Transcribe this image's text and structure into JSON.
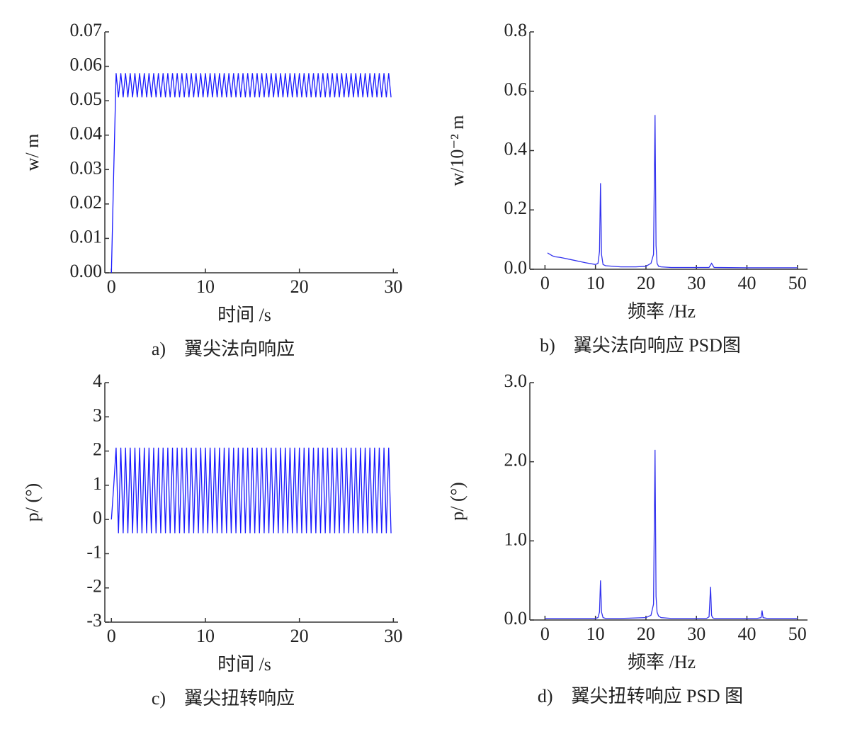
{
  "chart_data": [
    {
      "type": "line",
      "caption": "a)　翼尖法向响应",
      "xlabel": "时间 /s",
      "ylabel": "w/ m",
      "color": "#1a1aff",
      "xlim": [
        -0.7,
        30.5
      ],
      "ylim": [
        0,
        0.07
      ],
      "xticks": [
        0,
        10,
        20,
        30
      ],
      "yticks": [
        {
          "value": 0,
          "label": "0.00"
        },
        0.01,
        0.02,
        0.03,
        0.04,
        0.05,
        0.06,
        0.07
      ],
      "x": [
        0,
        0.25,
        0.5,
        0.75,
        1,
        1.25,
        1.5,
        1.75,
        2,
        2.25,
        2.5,
        2.75,
        3,
        3.25,
        3.5,
        3.75,
        4,
        4.25,
        4.5,
        4.75,
        5,
        5.25,
        5.5,
        5.75,
        6,
        6.25,
        6.5,
        6.75,
        7,
        7.25,
        7.5,
        7.75,
        8,
        8.25,
        8.5,
        8.75,
        9,
        9.25,
        9.5,
        9.75,
        10,
        10.25,
        10.5,
        10.75,
        11,
        11.25,
        11.5,
        11.75,
        12,
        12.25,
        12.5,
        12.75,
        13,
        13.25,
        13.5,
        13.75,
        14,
        14.25,
        14.5,
        14.75,
        15,
        15.25,
        15.5,
        15.75,
        16,
        16.25,
        16.5,
        16.75,
        17,
        17.25,
        17.5,
        17.75,
        18,
        18.25,
        18.5,
        18.75,
        19,
        19.25,
        19.5,
        19.75,
        20,
        20.25,
        20.5,
        20.75,
        21,
        21.25,
        21.5,
        21.75,
        22,
        22.25,
        22.5,
        22.75,
        23,
        23.25,
        23.5,
        23.75,
        24,
        24.25,
        24.5,
        24.75,
        25,
        25.25,
        25.5,
        25.75,
        26,
        26.25,
        26.5,
        26.75,
        27,
        27.25,
        27.5,
        27.75,
        28,
        28.25,
        28.5,
        28.75,
        29,
        29.25,
        29.5,
        29.75
      ],
      "values": [
        0,
        0.03,
        0.058,
        0.051,
        0.058,
        0.051,
        0.058,
        0.051,
        0.058,
        0.051,
        0.058,
        0.051,
        0.058,
        0.051,
        0.058,
        0.051,
        0.058,
        0.051,
        0.058,
        0.051,
        0.058,
        0.051,
        0.058,
        0.051,
        0.058,
        0.051,
        0.058,
        0.051,
        0.058,
        0.051,
        0.058,
        0.051,
        0.058,
        0.051,
        0.058,
        0.051,
        0.058,
        0.051,
        0.058,
        0.051,
        0.058,
        0.051,
        0.058,
        0.051,
        0.058,
        0.051,
        0.058,
        0.051,
        0.058,
        0.051,
        0.058,
        0.051,
        0.058,
        0.051,
        0.058,
        0.051,
        0.058,
        0.051,
        0.058,
        0.051,
        0.058,
        0.051,
        0.058,
        0.051,
        0.058,
        0.051,
        0.058,
        0.051,
        0.058,
        0.051,
        0.058,
        0.051,
        0.058,
        0.051,
        0.058,
        0.051,
        0.058,
        0.051,
        0.058,
        0.051,
        0.058,
        0.051,
        0.058,
        0.051,
        0.058,
        0.051,
        0.058,
        0.051,
        0.058,
        0.051,
        0.058,
        0.051,
        0.058,
        0.051,
        0.058,
        0.051,
        0.058,
        0.051,
        0.058,
        0.051,
        0.058,
        0.051,
        0.058,
        0.051,
        0.058,
        0.051,
        0.058,
        0.051,
        0.058,
        0.051,
        0.058,
        0.051,
        0.058,
        0.051,
        0.058,
        0.051,
        0.058,
        0.051,
        0.058,
        0.051
      ]
    },
    {
      "type": "line",
      "caption": "b)　翼尖法向响应 PSD图",
      "xlabel": "频率 /Hz",
      "ylabel": "w/10⁻² m",
      "color": "#3333ee",
      "xlim": [
        -3,
        52
      ],
      "ylim": [
        0,
        0.8
      ],
      "xticks": [
        0,
        10,
        20,
        30,
        40,
        50
      ],
      "yticks": [
        {
          "value": 0,
          "label": "0.0"
        },
        0.2,
        0.4,
        0.6,
        0.8
      ],
      "x": [
        0.5,
        1,
        1.5,
        2,
        3,
        5,
        8,
        10,
        10.5,
        10.8,
        11,
        11.2,
        11.5,
        12,
        15,
        18,
        20,
        21,
        21.5,
        21.8,
        22,
        22.2,
        22.5,
        23,
        25,
        30,
        32.5,
        33,
        33.5,
        40,
        45,
        50
      ],
      "values": [
        0.055,
        0.05,
        0.045,
        0.042,
        0.04,
        0.033,
        0.022,
        0.016,
        0.02,
        0.06,
        0.29,
        0.05,
        0.016,
        0.012,
        0.008,
        0.008,
        0.01,
        0.02,
        0.05,
        0.52,
        0.08,
        0.02,
        0.01,
        0.008,
        0.006,
        0.006,
        0.006,
        0.02,
        0.006,
        0.005,
        0.005,
        0.005
      ]
    },
    {
      "type": "line",
      "caption": "c)　翼尖扭转响应",
      "xlabel": "时间 /s",
      "ylabel": "p/ (°)",
      "color": "#1a1aff",
      "xlim": [
        -0.7,
        30.5
      ],
      "ylim": [
        -3,
        4
      ],
      "xticks": [
        0,
        10,
        20,
        30
      ],
      "yticks": [
        -3,
        -2,
        -1,
        0,
        1,
        2,
        3,
        4
      ],
      "x": [
        0,
        0.25,
        0.5,
        0.75,
        1,
        1.25,
        1.5,
        1.75,
        2,
        2.25,
        2.5,
        2.75,
        3,
        3.25,
        3.5,
        3.75,
        4,
        4.25,
        4.5,
        4.75,
        5,
        5.25,
        5.5,
        5.75,
        6,
        6.25,
        6.5,
        6.75,
        7,
        7.25,
        7.5,
        7.75,
        8,
        8.25,
        8.5,
        8.75,
        9,
        9.25,
        9.5,
        9.75,
        10,
        10.25,
        10.5,
        10.75,
        11,
        11.25,
        11.5,
        11.75,
        12,
        12.25,
        12.5,
        12.75,
        13,
        13.25,
        13.5,
        13.75,
        14,
        14.25,
        14.5,
        14.75,
        15,
        15.25,
        15.5,
        15.75,
        16,
        16.25,
        16.5,
        16.75,
        17,
        17.25,
        17.5,
        17.75,
        18,
        18.25,
        18.5,
        18.75,
        19,
        19.25,
        19.5,
        19.75,
        20,
        20.25,
        20.5,
        20.75,
        21,
        21.25,
        21.5,
        21.75,
        22,
        22.25,
        22.5,
        22.75,
        23,
        23.25,
        23.5,
        23.75,
        24,
        24.25,
        24.5,
        24.75,
        25,
        25.25,
        25.5,
        25.75,
        26,
        26.25,
        26.5,
        26.75,
        27,
        27.25,
        27.5,
        27.75,
        28,
        28.25,
        28.5,
        28.75,
        29,
        29.25,
        29.5,
        29.75
      ],
      "values": [
        0,
        1,
        2.1,
        -0.4,
        2.1,
        -0.4,
        2.1,
        -0.4,
        2.1,
        -0.4,
        2.1,
        -0.4,
        2.1,
        -0.4,
        2.1,
        -0.4,
        2.1,
        -0.4,
        2.1,
        -0.4,
        2.1,
        -0.4,
        2.1,
        -0.4,
        2.1,
        -0.4,
        2.1,
        -0.4,
        2.1,
        -0.4,
        2.1,
        -0.4,
        2.1,
        -0.4,
        2.1,
        -0.4,
        2.1,
        -0.4,
        2.1,
        -0.4,
        2.1,
        -0.4,
        2.1,
        -0.4,
        2.1,
        -0.4,
        2.1,
        -0.4,
        2.1,
        -0.4,
        2.1,
        -0.4,
        2.1,
        -0.4,
        2.1,
        -0.4,
        2.1,
        -0.4,
        2.1,
        -0.4,
        2.1,
        -0.4,
        2.1,
        -0.4,
        2.1,
        -0.4,
        2.1,
        -0.4,
        2.1,
        -0.4,
        2.1,
        -0.4,
        2.1,
        -0.4,
        2.1,
        -0.4,
        2.1,
        -0.4,
        2.1,
        -0.4,
        2.1,
        -0.4,
        2.1,
        -0.4,
        2.1,
        -0.4,
        2.1,
        -0.4,
        2.1,
        -0.4,
        2.1,
        -0.4,
        2.1,
        -0.4,
        2.1,
        -0.4,
        2.1,
        -0.4,
        2.1,
        -0.4,
        2.1,
        -0.4,
        2.1,
        -0.4,
        2.1,
        -0.4,
        2.1,
        -0.4,
        2.1,
        -0.4,
        2.1,
        -0.4,
        2.1,
        -0.4,
        2.1,
        -0.4,
        2.1,
        -0.4,
        2.1,
        -0.4
      ]
    },
    {
      "type": "line",
      "caption": "d)　翼尖扭转响应 PSD 图",
      "xlabel": "频率 /Hz",
      "ylabel": "p/ (°)",
      "color": "#3333ee",
      "xlim": [
        -3,
        52
      ],
      "ylim": [
        0,
        3
      ],
      "xticks": [
        0,
        10,
        20,
        30,
        40,
        50
      ],
      "yticks": [
        {
          "value": 0,
          "label": "0.0"
        },
        {
          "value": 1,
          "label": "1.0"
        },
        {
          "value": 2,
          "label": "2.0"
        },
        {
          "value": 3,
          "label": "3.0"
        }
      ],
      "x": [
        0,
        5,
        10,
        10.5,
        10.8,
        11,
        11.2,
        11.5,
        12,
        15,
        20,
        21,
        21.5,
        21.8,
        22,
        22.2,
        22.5,
        23,
        25,
        30,
        32,
        32.5,
        32.8,
        33,
        33.2,
        33.5,
        34,
        38,
        42,
        42.8,
        43,
        43.2,
        44,
        47,
        50
      ],
      "values": [
        0.02,
        0.02,
        0.02,
        0.03,
        0.1,
        0.5,
        0.1,
        0.03,
        0.02,
        0.02,
        0.03,
        0.06,
        0.2,
        2.15,
        0.3,
        0.1,
        0.05,
        0.03,
        0.02,
        0.02,
        0.02,
        0.04,
        0.42,
        0.06,
        0.03,
        0.02,
        0.02,
        0.02,
        0.02,
        0.03,
        0.12,
        0.03,
        0.02,
        0.02,
        0.02
      ]
    }
  ]
}
